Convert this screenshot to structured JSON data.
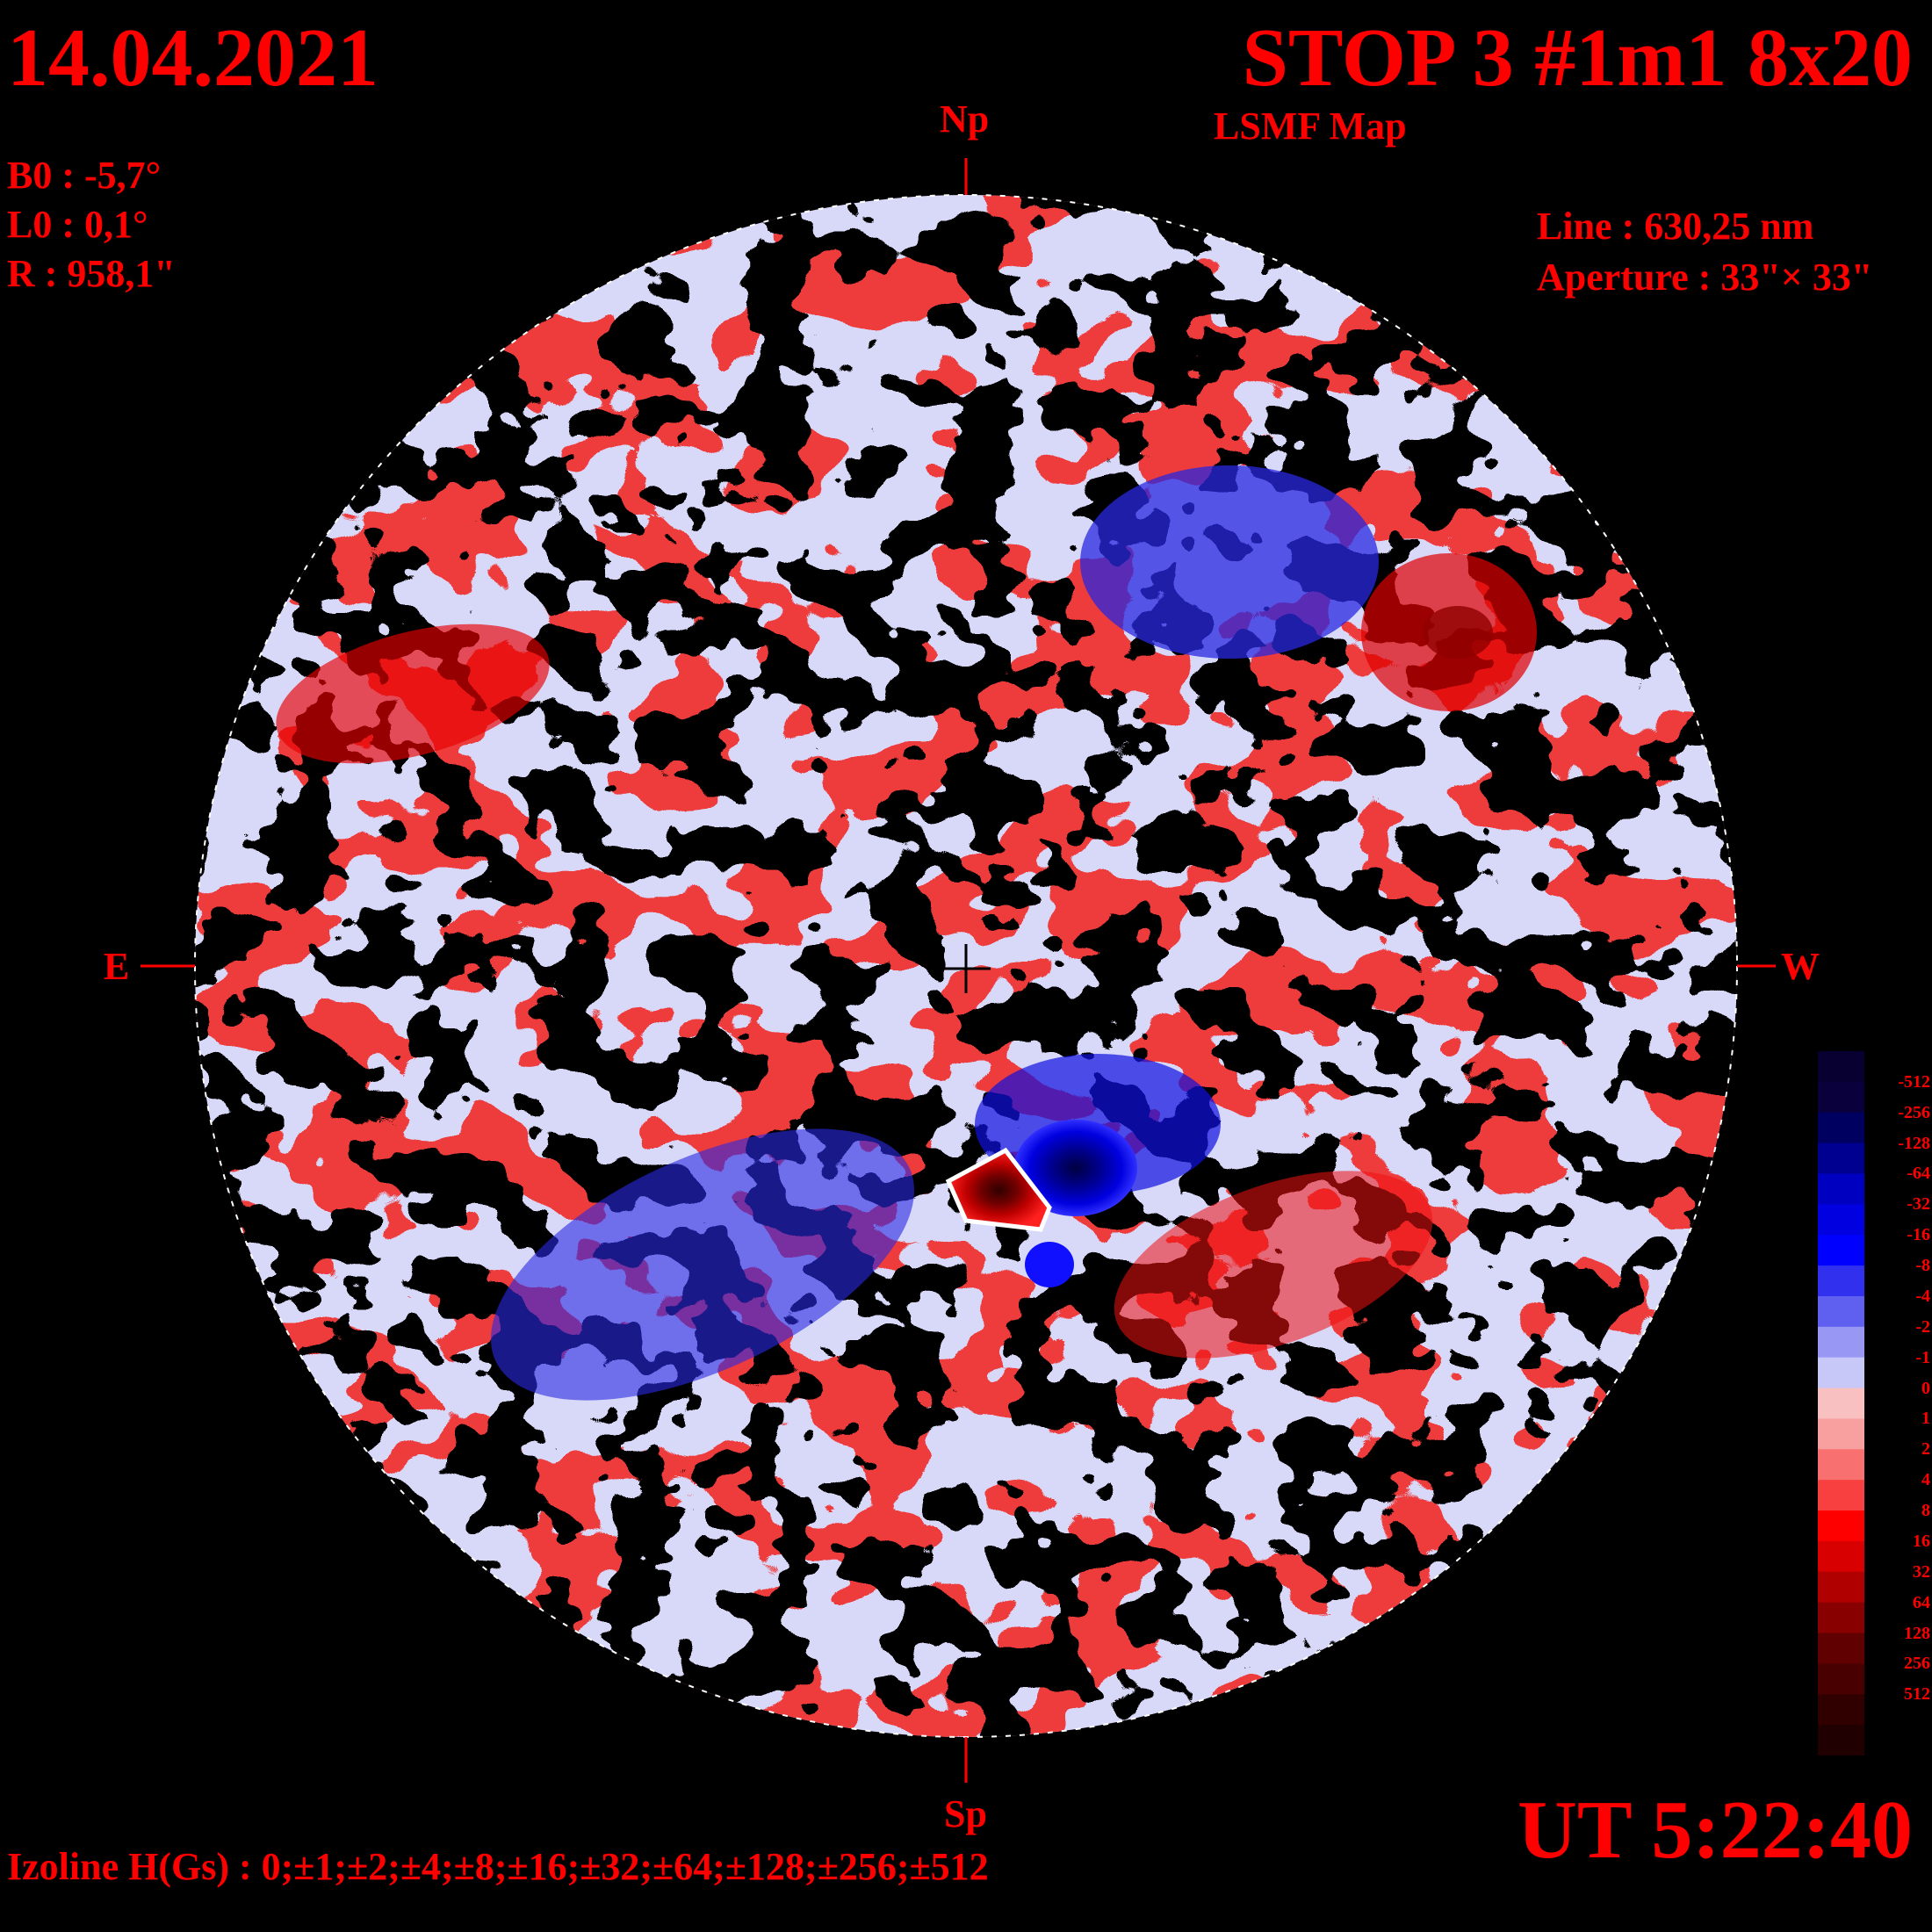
{
  "header": {
    "date": "14.04.2021",
    "title": "STOP 3 #1m1 8x20",
    "subtitle": "LSMF  Map",
    "ut": "UT 5:22:40"
  },
  "params": {
    "b0": "B0 : -5,7°",
    "l0": "L0 : 0,1°",
    "r": "R  : 958,1\"",
    "line": "Line :  630,25 nm",
    "aperture": "Aperture : 33\"× 33\""
  },
  "directions": {
    "north": "Np",
    "south": "Sp",
    "east": "E",
    "west": "W"
  },
  "footer": {
    "izoline": "Izoline H(Gs) : 0;±1;±2;±4;±8;±16;±32;±64;±128;±256;±512"
  },
  "colors": {
    "text": "#ff0000",
    "background": "#000000"
  },
  "colorbar": {
    "levels": [
      {
        "label": "",
        "color": "#080030"
      },
      {
        "label": "-512",
        "color": "#0a003c"
      },
      {
        "label": "-256",
        "color": "#000060"
      },
      {
        "label": "-128",
        "color": "#000090"
      },
      {
        "label": "-64",
        "color": "#0000c0"
      },
      {
        "label": "-32",
        "color": "#0000e0"
      },
      {
        "label": "-16",
        "color": "#0000ff"
      },
      {
        "label": "-8",
        "color": "#3030ee"
      },
      {
        "label": "-4",
        "color": "#6060f0"
      },
      {
        "label": "-2",
        "color": "#9898f4"
      },
      {
        "label": "-1",
        "color": "#c8c8f8"
      },
      {
        "label": "0",
        "color": "#f8c0c0"
      },
      {
        "label": "1",
        "color": "#f8a0a0"
      },
      {
        "label": "2",
        "color": "#f87070"
      },
      {
        "label": "4",
        "color": "#f84040"
      },
      {
        "label": "8",
        "color": "#ff0000"
      },
      {
        "label": "16",
        "color": "#d80000"
      },
      {
        "label": "32",
        "color": "#b00000"
      },
      {
        "label": "64",
        "color": "#880000"
      },
      {
        "label": "128",
        "color": "#600000"
      },
      {
        "label": "256",
        "color": "#480000"
      },
      {
        "label": "512",
        "color": "#300000"
      },
      {
        "label": "",
        "color": "#200000"
      }
    ]
  }
}
